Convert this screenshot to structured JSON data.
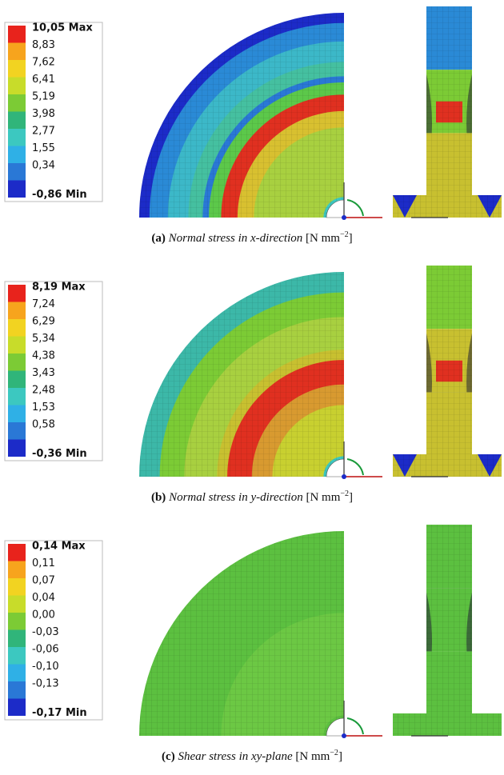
{
  "panels": [
    {
      "legend": [
        "10,05 Max",
        "8,83",
        "7,62",
        "6,41",
        "5,19",
        "3,98",
        "2,77",
        "1,55",
        "0,34",
        "-0,86 Min"
      ],
      "caption": {
        "label": "(a)",
        "text": "Normal stress in x-direction",
        "unit": "[N mm",
        "exponent": "−2",
        "unit_close": "]"
      }
    },
    {
      "legend": [
        "8,19 Max",
        "7,24",
        "6,29",
        "5,34",
        "4,38",
        "3,43",
        "2,48",
        "1,53",
        "0,58",
        "-0,36 Min"
      ],
      "caption": {
        "label": "(b)",
        "text": "Normal stress in y-direction",
        "unit": "[N mm",
        "exponent": "−2",
        "unit_close": "]"
      }
    },
    {
      "legend": [
        "0,14 Max",
        "0,11",
        "0,07",
        "0,04",
        "0,00",
        "-0,03",
        "-0,06",
        "-0,10",
        "-0,13",
        "-0,17 Min"
      ],
      "caption": {
        "label": "(c)",
        "text": "Shear stress in xy-plane",
        "unit": "[N mm",
        "exponent": "−2",
        "unit_close": "]"
      }
    }
  ],
  "legend_colors": [
    "#e8231c",
    "#f7a41d",
    "#f2d321",
    "#c8dc2a",
    "#7ccb35",
    "#30b57a",
    "#3cc8c0",
    "#2fb0e6",
    "#2a78d6",
    "#1c2bc8"
  ]
}
